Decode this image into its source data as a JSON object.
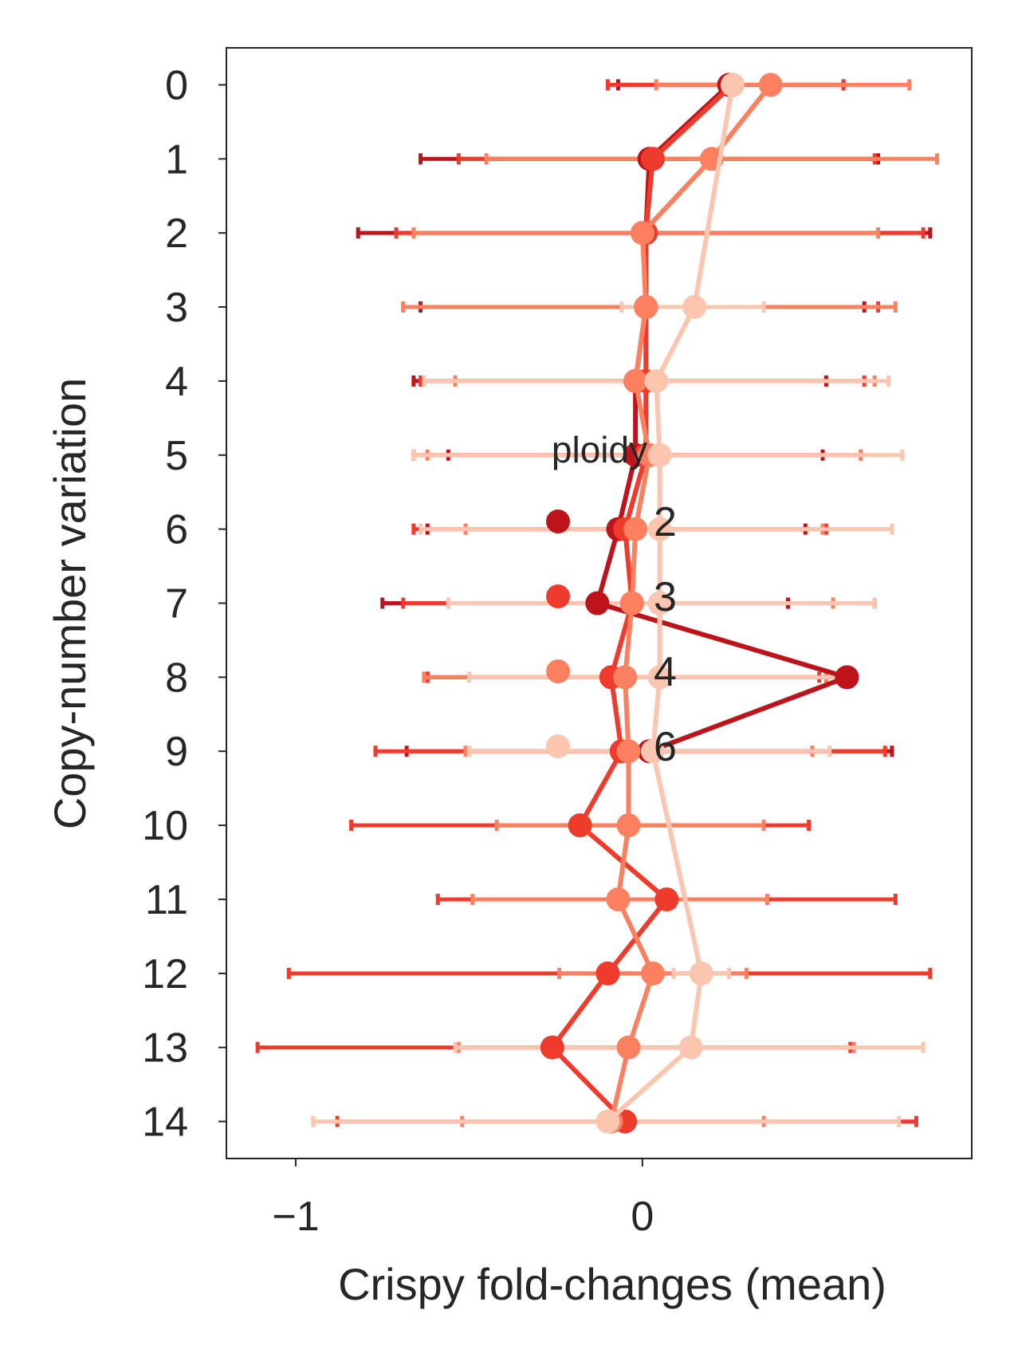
{
  "chart_data": {
    "type": "line",
    "orientation": "horizontal",
    "xlabel": "Crispy fold-changes (mean)",
    "ylabel": "Copy-number variation",
    "xlim": [
      -1.2,
      0.95
    ],
    "ylim": [
      -0.5,
      14.5
    ],
    "y_inverted": true,
    "xticks": [
      -1,
      0
    ],
    "xtick_labels": [
      "−1",
      "0"
    ],
    "yticks": [
      0,
      1,
      2,
      3,
      4,
      5,
      6,
      7,
      8,
      9,
      10,
      11,
      12,
      13,
      14
    ],
    "ytick_labels": [
      "0",
      "1",
      "2",
      "3",
      "4",
      "5",
      "6",
      "7",
      "8",
      "9",
      "10",
      "11",
      "12",
      "13",
      "14"
    ],
    "grid": false,
    "legend": {
      "title": "ploidy",
      "placement": "center"
    },
    "series": [
      {
        "name": "2",
        "color": "#bc141a",
        "points": [
          {
            "y": 0,
            "x": 0.25,
            "lo": -0.07,
            "hi": 0.58
          },
          {
            "y": 1,
            "x": 0.02,
            "lo": -0.64,
            "hi": 0.68
          },
          {
            "y": 2,
            "x": 0.01,
            "lo": -0.82,
            "hi": 0.83
          },
          {
            "y": 3,
            "x": 0.01,
            "lo": -0.64,
            "hi": 0.64
          },
          {
            "y": 4,
            "x": -0.02,
            "lo": -0.66,
            "hi": 0.53
          },
          {
            "y": 5,
            "x": -0.02,
            "lo": -0.56,
            "hi": 0.52
          },
          {
            "y": 6,
            "x": -0.07,
            "lo": -0.62,
            "hi": 0.47
          },
          {
            "y": 7,
            "x": -0.13,
            "lo": -0.75,
            "hi": 0.42
          },
          {
            "y": 8,
            "x": 0.59,
            "lo": -0.62,
            "hi": 0.56
          },
          {
            "y": 9,
            "x": 0.02,
            "lo": -0.68,
            "hi": 0.72
          }
        ]
      },
      {
        "name": "3",
        "color": "#ef3b2c",
        "points": [
          {
            "y": 0,
            "x": 0.26,
            "lo": -0.1,
            "hi": 0.58
          },
          {
            "y": 1,
            "x": 0.03,
            "lo": -0.53,
            "hi": 0.67
          },
          {
            "y": 2,
            "x": 0.01,
            "lo": -0.71,
            "hi": 0.81
          },
          {
            "y": 3,
            "x": 0.01,
            "lo": -0.69,
            "hi": 0.68
          },
          {
            "y": 4,
            "x": 0.01,
            "lo": -0.64,
            "hi": 0.64
          },
          {
            "y": 5,
            "x": 0.01,
            "lo": -0.66,
            "hi": 0.63
          },
          {
            "y": 6,
            "x": -0.05,
            "lo": -0.66,
            "hi": 0.53
          },
          {
            "y": 7,
            "x": -0.03,
            "lo": -0.69,
            "hi": 0.67
          },
          {
            "y": 8,
            "x": -0.09,
            "lo": -0.62,
            "hi": 0.51
          },
          {
            "y": 9,
            "x": -0.06,
            "lo": -0.77,
            "hi": 0.7
          },
          {
            "y": 10,
            "x": -0.18,
            "lo": -0.84,
            "hi": 0.48
          },
          {
            "y": 11,
            "x": 0.07,
            "lo": -0.59,
            "hi": 0.73
          },
          {
            "y": 12,
            "x": -0.1,
            "lo": -1.02,
            "hi": 0.83
          },
          {
            "y": 13,
            "x": -0.26,
            "lo": -1.11,
            "hi": 0.6
          },
          {
            "y": 14,
            "x": -0.05,
            "lo": -0.88,
            "hi": 0.79
          }
        ]
      },
      {
        "name": "4",
        "color": "#fb8060",
        "points": [
          {
            "y": 0,
            "x": 0.37,
            "lo": 0.04,
            "hi": 0.77
          },
          {
            "y": 1,
            "x": 0.2,
            "lo": -0.45,
            "hi": 0.85
          },
          {
            "y": 2,
            "x": 0.0,
            "lo": -0.66,
            "hi": 0.68
          },
          {
            "y": 3,
            "x": 0.01,
            "lo": -0.69,
            "hi": 0.73
          },
          {
            "y": 4,
            "x": -0.02,
            "lo": -0.54,
            "hi": 0.67
          },
          {
            "y": 5,
            "x": 0.02,
            "lo": -0.62,
            "hi": 0.63
          },
          {
            "y": 6,
            "x": -0.02,
            "lo": -0.51,
            "hi": 0.52
          },
          {
            "y": 7,
            "x": -0.03,
            "lo": -0.56,
            "hi": 0.55
          },
          {
            "y": 8,
            "x": -0.05,
            "lo": -0.63,
            "hi": 0.53
          },
          {
            "y": 9,
            "x": -0.04,
            "lo": -0.51,
            "hi": 0.49
          },
          {
            "y": 10,
            "x": -0.04,
            "lo": -0.42,
            "hi": 0.35
          },
          {
            "y": 11,
            "x": -0.07,
            "lo": -0.49,
            "hi": 0.36
          },
          {
            "y": 12,
            "x": 0.03,
            "lo": -0.24,
            "hi": 0.3
          },
          {
            "y": 13,
            "x": -0.04,
            "lo": -0.53,
            "hi": 0.61
          },
          {
            "y": 14,
            "x": -0.09,
            "lo": -0.52,
            "hi": 0.35
          }
        ]
      },
      {
        "name": "6",
        "color": "#fcc5b0",
        "points": [
          {
            "y": 0,
            "x": 0.26,
            "lo": 0.25,
            "hi": 0.27
          },
          {
            "y": 3,
            "x": 0.15,
            "lo": -0.06,
            "hi": 0.35
          },
          {
            "y": 4,
            "x": 0.04,
            "lo": -0.63,
            "hi": 0.71
          },
          {
            "y": 5,
            "x": 0.05,
            "lo": -0.66,
            "hi": 0.75
          },
          {
            "y": 6,
            "x": 0.05,
            "lo": -0.64,
            "hi": 0.72
          },
          {
            "y": 7,
            "x": 0.05,
            "lo": -0.56,
            "hi": 0.67
          },
          {
            "y": 8,
            "x": 0.05,
            "lo": -0.5,
            "hi": 0.58
          },
          {
            "y": 9,
            "x": 0.03,
            "lo": -0.5,
            "hi": 0.54
          },
          {
            "y": 12,
            "x": 0.17,
            "lo": 0.09,
            "hi": 0.25
          },
          {
            "y": 13,
            "x": 0.14,
            "lo": -0.54,
            "hi": 0.81
          },
          {
            "y": 14,
            "x": -0.1,
            "lo": -0.95,
            "hi": 0.74
          }
        ]
      }
    ]
  }
}
